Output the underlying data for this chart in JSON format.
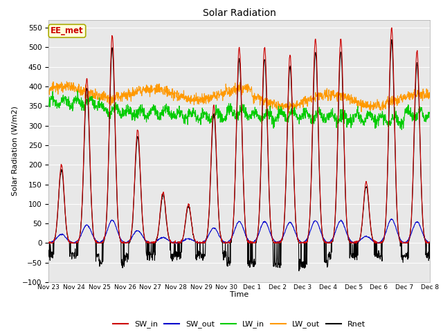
{
  "title": "Solar Radiation",
  "xlabel": "Time",
  "ylabel": "Solar Radiation (W/m2)",
  "ylim": [
    -100,
    570
  ],
  "colors": {
    "SW_in": "#cc0000",
    "SW_out": "#0000cc",
    "LW_in": "#00cc00",
    "LW_out": "#ff9900",
    "Rnet": "#000000"
  },
  "annotation_text": "EE_met",
  "annotation_color": "#cc0000",
  "annotation_bg": "#ffffdd",
  "annotation_edge": "#aaaa00",
  "bg_color": "#e8e8e8",
  "grid_color": "#ffffff",
  "fig_bg": "#ffffff",
  "tick_labels": [
    "Nov 23",
    "Nov 24",
    "Nov 25",
    "Nov 26",
    "Nov 27",
    "Nov 28",
    "Nov 29",
    "Nov 30",
    "Dec 1",
    "Dec 2",
    "Dec 3",
    "Dec 4",
    "Dec 5",
    "Dec 6",
    "Dec 7",
    "Dec 8"
  ],
  "peak_heights_SWin": [
    200,
    420,
    530,
    290,
    130,
    100,
    350,
    500,
    500,
    480,
    520,
    520,
    155,
    550,
    490
  ],
  "n_days": 15,
  "pts_per_day": 96,
  "random_seed": 42
}
